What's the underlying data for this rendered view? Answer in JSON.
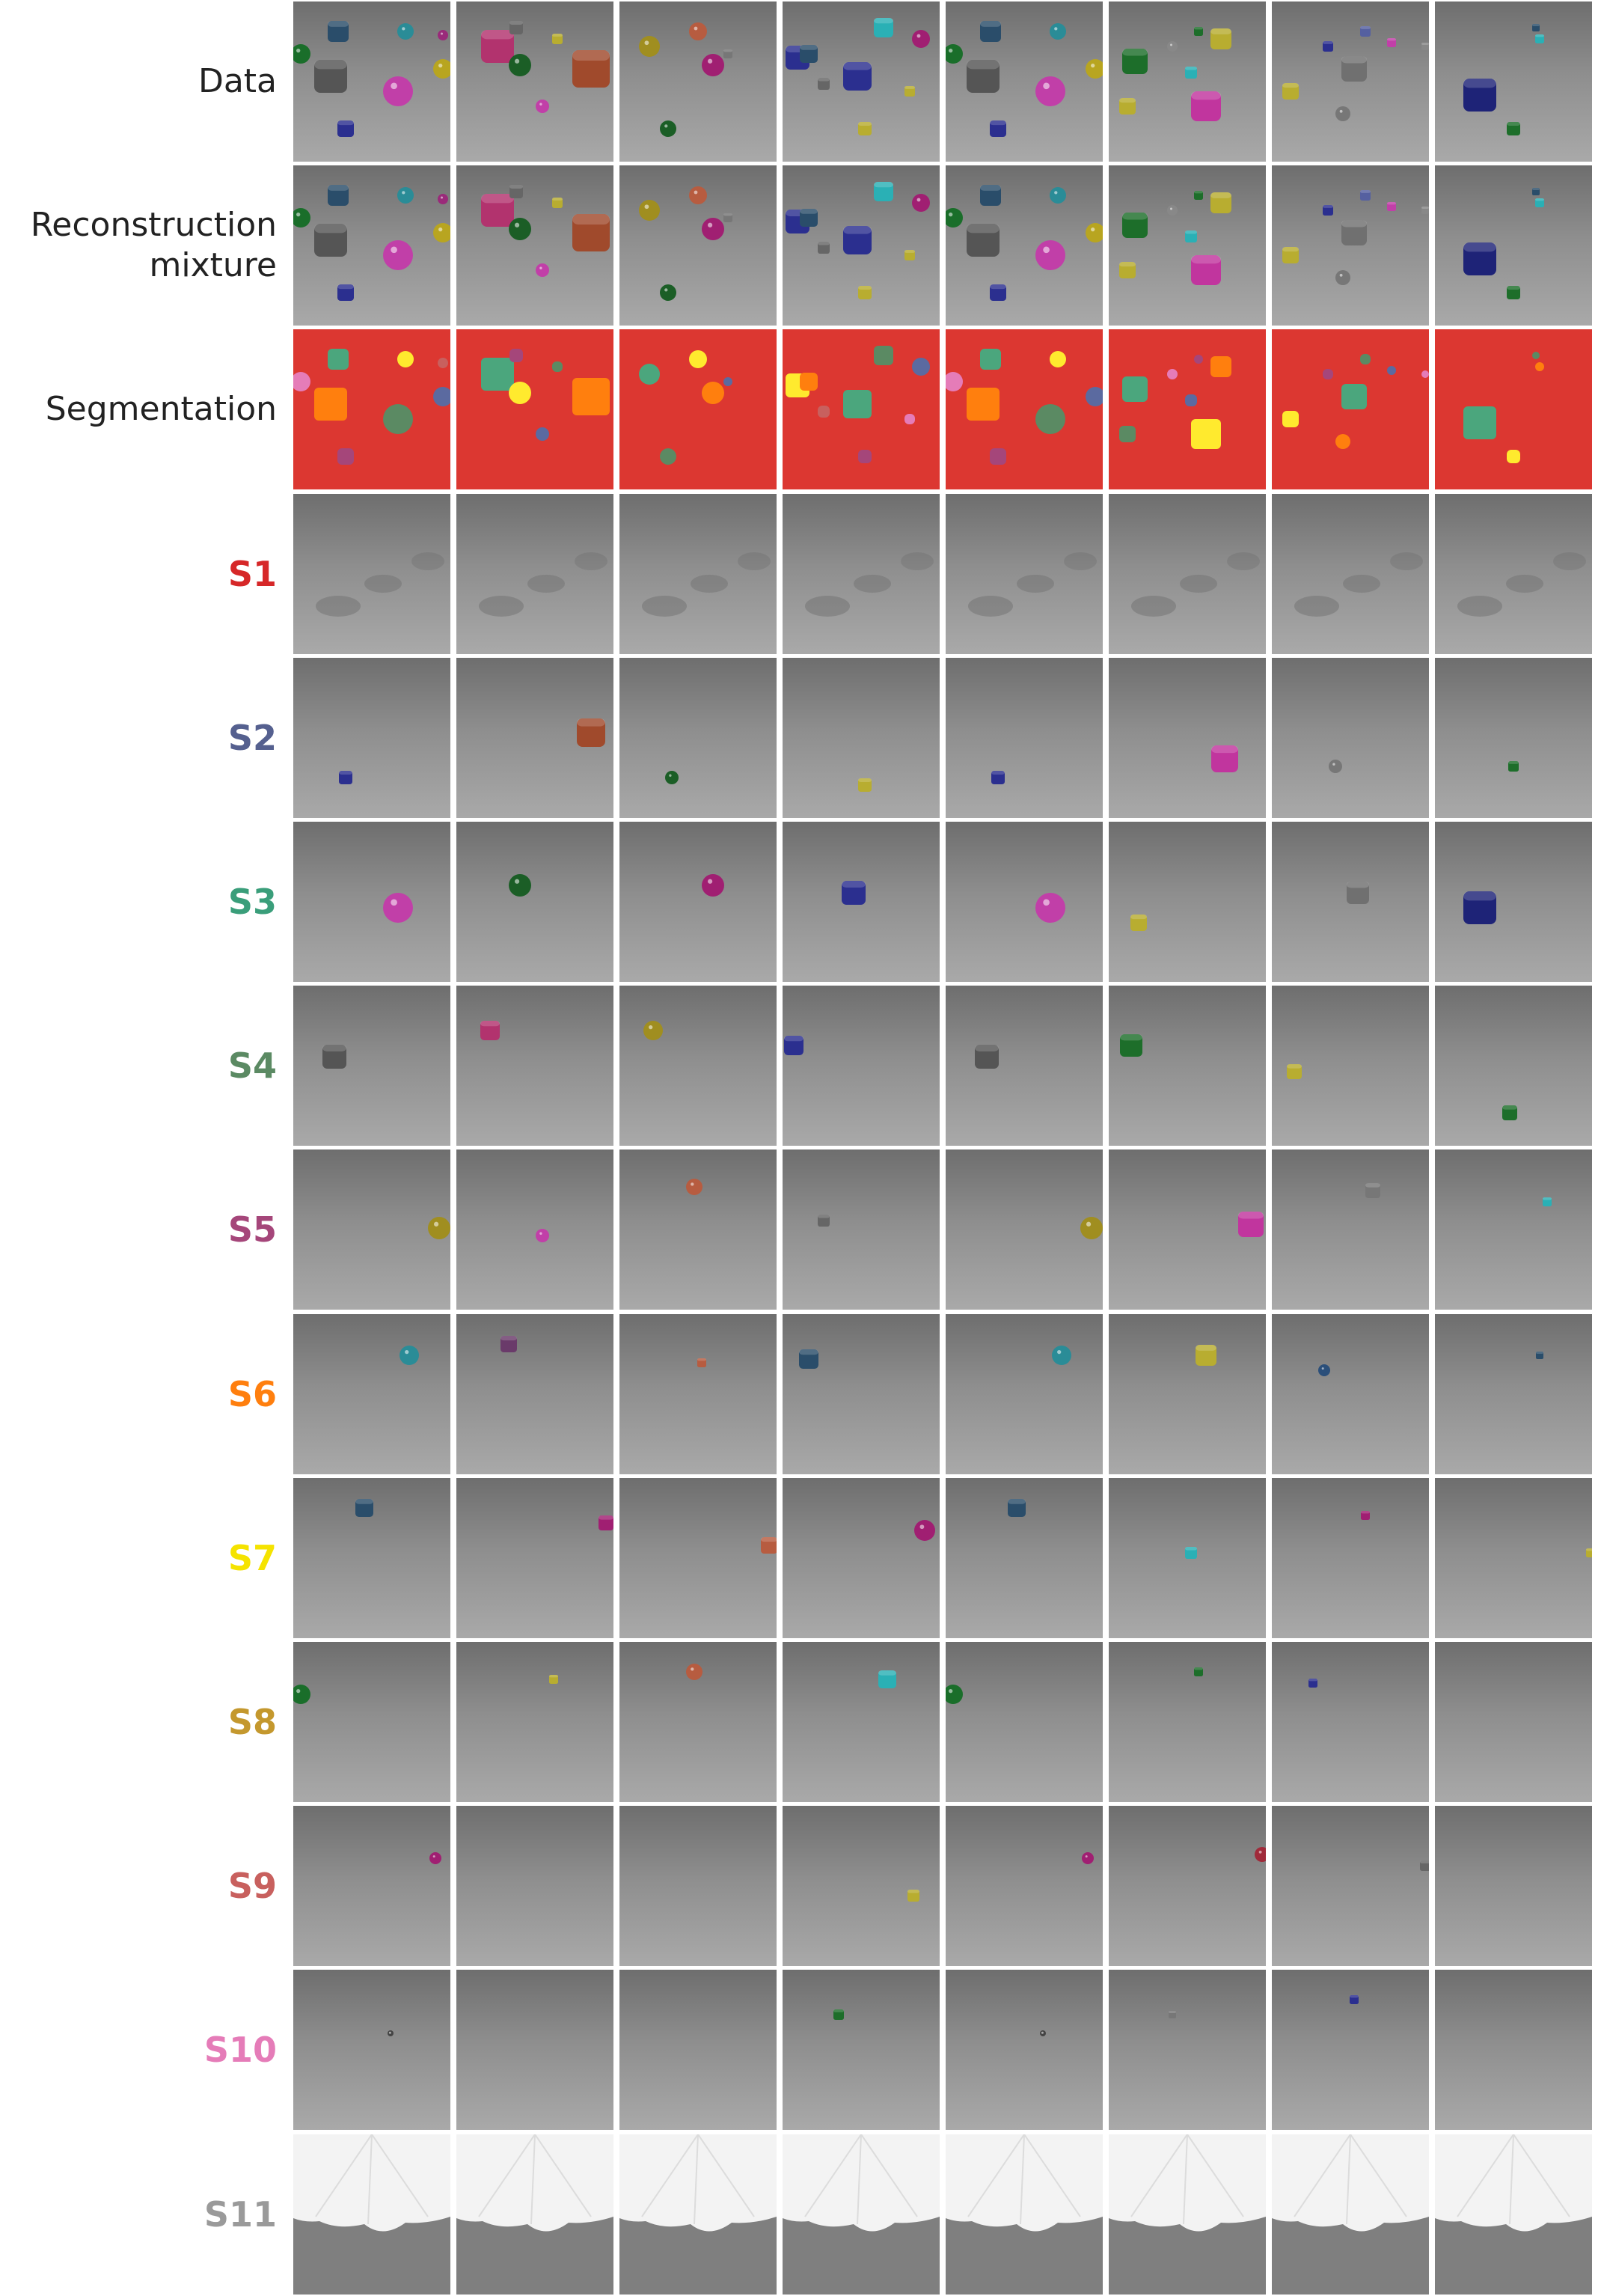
{
  "figure": {
    "rows": [
      {
        "id": "data",
        "label_lines": [
          "Data"
        ],
        "type": "scene"
      },
      {
        "id": "recon",
        "label_lines": [
          "Reconstruction",
          "mixture"
        ],
        "type": "scene"
      },
      {
        "id": "seg",
        "label_lines": [
          "Segmentation"
        ],
        "type": "segmentation"
      },
      {
        "id": "S1",
        "label_lines": [
          "S1"
        ],
        "type": "slot",
        "color": "#d62728"
      },
      {
        "id": "S2",
        "label_lines": [
          "S2"
        ],
        "type": "slot",
        "color": "#55608f"
      },
      {
        "id": "S3",
        "label_lines": [
          "S3"
        ],
        "type": "slot",
        "color": "#3a9e7a"
      },
      {
        "id": "S4",
        "label_lines": [
          "S4"
        ],
        "type": "slot",
        "color": "#5b8a63"
      },
      {
        "id": "S5",
        "label_lines": [
          "S5"
        ],
        "type": "slot",
        "color": "#a5467a"
      },
      {
        "id": "S6",
        "label_lines": [
          "S6"
        ],
        "type": "slot",
        "color": "#ff7f0e"
      },
      {
        "id": "S7",
        "label_lines": [
          "S7"
        ],
        "type": "slot",
        "color": "#f5e300"
      },
      {
        "id": "S8",
        "label_lines": [
          "S8"
        ],
        "type": "slot",
        "color": "#c4982e"
      },
      {
        "id": "S9",
        "label_lines": [
          "S9"
        ],
        "type": "slot",
        "color": "#c8605e"
      },
      {
        "id": "S10",
        "label_lines": [
          "S10"
        ],
        "type": "slot",
        "color": "#e57cb8"
      },
      {
        "id": "S11",
        "label_lines": [
          "S11"
        ],
        "type": "slot",
        "color": "#9a9a9a"
      }
    ]
  }
}
